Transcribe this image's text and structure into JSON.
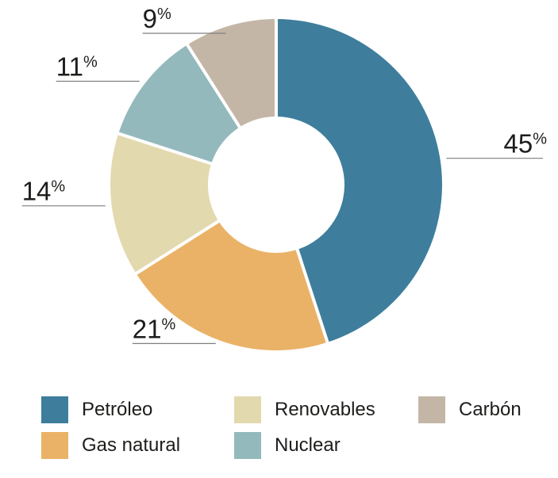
{
  "chart_data": {
    "type": "pie",
    "subtype": "donut",
    "title": "",
    "categories": [
      "Petróleo",
      "Gas natural",
      "Renovables",
      "Nuclear",
      "Carbón"
    ],
    "values": [
      45,
      21,
      14,
      11,
      9
    ],
    "labels": [
      "45%",
      "21%",
      "14%",
      "11%",
      "9%"
    ],
    "colors": [
      "#3e7e9c",
      "#eab267",
      "#e3d9ae",
      "#94b9bd",
      "#c4b6a7"
    ],
    "start_angle_deg": 0,
    "direction": "clockwise",
    "donut_hole_ratio": 0.41,
    "slice_gap_color": "#ffffff",
    "leader_line_color": "#7f7f7f",
    "label_text_color": "#1d1d1b",
    "legend_position": "bottom-left",
    "legend_columns": 3,
    "legend_order": "column-major"
  }
}
